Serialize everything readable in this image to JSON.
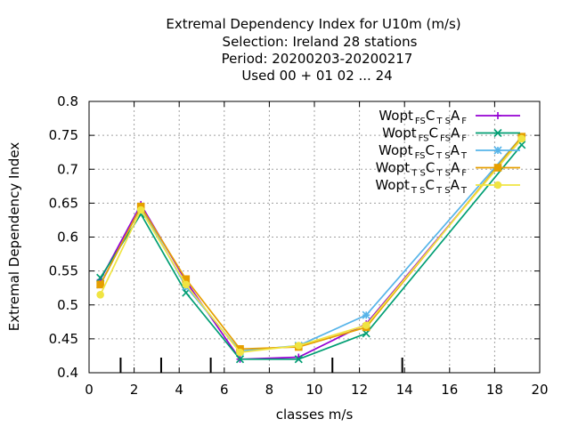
{
  "chart_data": {
    "type": "line",
    "title_lines": [
      "Extremal Dependency Index  for U10m (m/s)",
      "Selection: Ireland     28 stations",
      "Period: 20200203-20200217",
      "Used  00 + 01 02 ... 24"
    ],
    "xlabel": "classes m/s",
    "ylabel": "Extremal Dependency Index",
    "xlim": [
      0,
      20
    ],
    "ylim": [
      0.4,
      0.8
    ],
    "xticks": [
      "0",
      "2",
      "4",
      "6",
      "8",
      "10",
      "12",
      "14",
      "16",
      "18",
      "20"
    ],
    "yticks": [
      "0.4",
      "0.45",
      "0.5",
      "0.55",
      "0.6",
      "0.65",
      "0.7",
      "0.75",
      "0.8"
    ],
    "grid": true,
    "legend_position": "top-right",
    "class_boundaries": [
      1.4,
      3.2,
      5.4,
      10.8,
      13.9
    ],
    "series": [
      {
        "name_parts": [
          [
            "Wopt",
            ""
          ],
          [
            "FS",
            "sub"
          ],
          [
            "C",
            ""
          ],
          [
            "T S",
            "sub"
          ],
          [
            "A",
            ""
          ],
          [
            "F",
            "sub"
          ]
        ],
        "color": "#9400d3",
        "marker": "plus",
        "x": [
          0.5,
          2.3,
          4.3,
          6.7,
          9.3,
          12.3,
          19.2
        ],
        "y": [
          0.537,
          0.648,
          0.535,
          0.42,
          0.423,
          0.472,
          0.745
        ]
      },
      {
        "name_parts": [
          [
            "Wopt",
            ""
          ],
          [
            "FS",
            "sub"
          ],
          [
            "C",
            ""
          ],
          [
            "FS",
            "sub"
          ],
          [
            "A",
            ""
          ],
          [
            "F",
            "sub"
          ]
        ],
        "color": "#009e73",
        "marker": "cross",
        "x": [
          0.5,
          2.3,
          4.3,
          6.7,
          9.3,
          12.3,
          19.2
        ],
        "y": [
          0.54,
          0.634,
          0.518,
          0.42,
          0.42,
          0.458,
          0.736
        ]
      },
      {
        "name_parts": [
          [
            "Wopt",
            ""
          ],
          [
            "FS",
            "sub"
          ],
          [
            "C",
            ""
          ],
          [
            "T S",
            "sub"
          ],
          [
            "A",
            ""
          ],
          [
            "T",
            "sub"
          ]
        ],
        "color": "#56b4e9",
        "marker": "star",
        "x": [
          0.5,
          2.3,
          4.3,
          6.7,
          9.3,
          12.3,
          19.2
        ],
        "y": [
          0.53,
          0.645,
          0.527,
          0.432,
          0.44,
          0.485,
          0.748
        ]
      },
      {
        "name_parts": [
          [
            "Wopt",
            ""
          ],
          [
            "T S",
            "sub"
          ],
          [
            "C",
            ""
          ],
          [
            "T S",
            "sub"
          ],
          [
            "A",
            ""
          ],
          [
            "F",
            "sub"
          ]
        ],
        "color": "#e69f00",
        "marker": "square",
        "x": [
          0.5,
          2.3,
          4.3,
          6.7,
          9.3,
          12.3,
          19.2
        ],
        "y": [
          0.53,
          0.645,
          0.538,
          0.435,
          0.438,
          0.467,
          0.748
        ]
      },
      {
        "name_parts": [
          [
            "Wopt",
            ""
          ],
          [
            "T S",
            "sub"
          ],
          [
            "C",
            ""
          ],
          [
            "T S",
            "sub"
          ],
          [
            "A",
            ""
          ],
          [
            "T",
            "sub"
          ]
        ],
        "color": "#f0e442",
        "marker": "circle",
        "x": [
          0.5,
          2.3,
          4.3,
          6.7,
          9.3,
          12.3,
          19.2
        ],
        "y": [
          0.515,
          0.64,
          0.53,
          0.43,
          0.44,
          0.47,
          0.745
        ]
      }
    ]
  }
}
